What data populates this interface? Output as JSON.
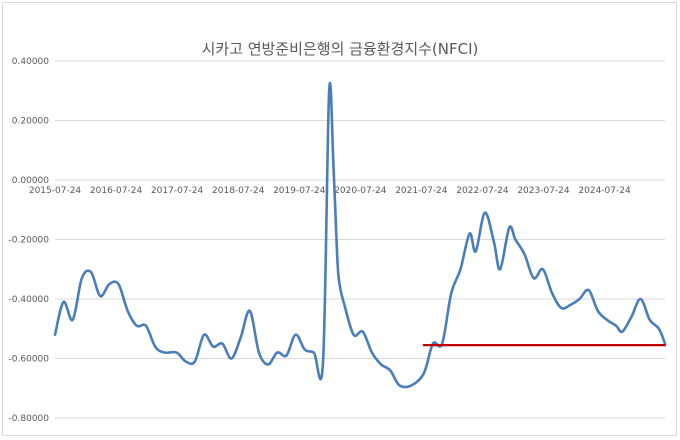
{
  "chart_data": {
    "type": "line",
    "title": "시카고 연방준비은행의 금융환경지수(NFCI)",
    "xlabel": "",
    "ylabel": "",
    "ylim": [
      -0.8,
      0.4
    ],
    "yticks": [
      "0.40000",
      "0.20000",
      "0.00000",
      "-0.20000",
      "-0.40000",
      "-0.60000",
      "-0.80000"
    ],
    "ytick_values": [
      0.4,
      0.2,
      0.0,
      -0.2,
      -0.4,
      -0.6,
      -0.8
    ],
    "xtick_labels": [
      "2015-07-24",
      "2016-07-24",
      "2017-07-24",
      "2018-07-24",
      "2019-07-24",
      "2020-07-24",
      "2021-07-24",
      "2022-07-24",
      "2023-07-24",
      "2024-07-24"
    ],
    "xtick_values": [
      2015.56,
      2016.56,
      2017.56,
      2018.56,
      2019.56,
      2020.56,
      2021.56,
      2022.56,
      2023.56,
      2024.56
    ],
    "grid": true,
    "series": [
      {
        "color": "#4a7ebb",
        "x": [
          2015.56,
          2015.7,
          2015.85,
          2016.0,
          2016.15,
          2016.3,
          2016.45,
          2016.6,
          2016.75,
          2016.9,
          2017.05,
          2017.2,
          2017.35,
          2017.55,
          2017.7,
          2017.85,
          2018.0,
          2018.15,
          2018.3,
          2018.45,
          2018.6,
          2018.75,
          2018.9,
          2019.05,
          2019.2,
          2019.35,
          2019.5,
          2019.65,
          2019.8,
          2019.95,
          2020.05,
          2020.12,
          2020.18,
          2020.22,
          2020.3,
          2020.45,
          2020.6,
          2020.75,
          2020.9,
          2021.05,
          2021.2,
          2021.4,
          2021.6,
          2021.75,
          2021.9,
          2022.05,
          2022.2,
          2022.35,
          2022.45,
          2022.6,
          2022.75,
          2022.85,
          2023.0,
          2023.1,
          2023.25,
          2023.4,
          2023.55,
          2023.7,
          2023.85,
          2024.0,
          2024.15,
          2024.3,
          2024.45,
          2024.6,
          2024.75,
          2024.85,
          2025.0,
          2025.15,
          2025.3,
          2025.45,
          2025.55
        ],
        "values": [
          -0.52,
          -0.41,
          -0.47,
          -0.33,
          -0.31,
          -0.39,
          -0.35,
          -0.35,
          -0.44,
          -0.49,
          -0.49,
          -0.56,
          -0.58,
          -0.58,
          -0.61,
          -0.61,
          -0.52,
          -0.56,
          -0.55,
          -0.6,
          -0.53,
          -0.44,
          -0.58,
          -0.62,
          -0.58,
          -0.59,
          -0.52,
          -0.57,
          -0.58,
          -0.61,
          0.3,
          0.05,
          -0.25,
          -0.35,
          -0.42,
          -0.52,
          -0.51,
          -0.58,
          -0.62,
          -0.64,
          -0.69,
          -0.69,
          -0.65,
          -0.55,
          -0.55,
          -0.38,
          -0.3,
          -0.18,
          -0.24,
          -0.11,
          -0.21,
          -0.3,
          -0.16,
          -0.2,
          -0.25,
          -0.33,
          -0.3,
          -0.38,
          -0.43,
          -0.42,
          -0.4,
          -0.37,
          -0.44,
          -0.47,
          -0.49,
          -0.51,
          -0.46,
          -0.4,
          -0.47,
          -0.5,
          -0.55
        ]
      },
      {
        "color": "#c00000",
        "x": [
          2021.6,
          2025.55
        ],
        "values": [
          -0.555,
          -0.555
        ]
      }
    ]
  }
}
